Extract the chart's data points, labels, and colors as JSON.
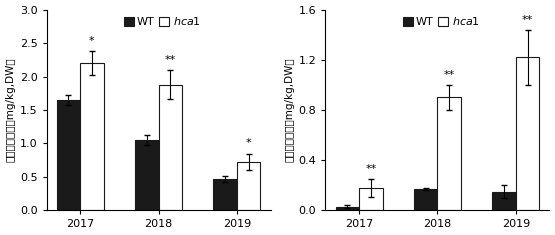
{
  "left_chart": {
    "ylabel": "糙米中镁含量（mg/kg,DW）",
    "ylim": [
      0,
      3.0
    ],
    "yticks": [
      0.0,
      0.5,
      1.0,
      1.5,
      2.0,
      2.5,
      3.0
    ],
    "categories": [
      "2017",
      "2018",
      "2019"
    ],
    "wt_values": [
      1.65,
      1.05,
      0.47
    ],
    "hca1_values": [
      2.2,
      1.88,
      0.73
    ],
    "wt_errors": [
      0.08,
      0.08,
      0.05
    ],
    "hca1_errors": [
      0.18,
      0.22,
      0.12
    ],
    "hca1_sig": [
      "*",
      "**",
      "*"
    ]
  },
  "right_chart": {
    "ylabel": "糙米中硃含量（mg/kg,DW）",
    "ylim": [
      0,
      1.6
    ],
    "yticks": [
      0.0,
      0.4,
      0.8,
      1.2,
      1.6
    ],
    "categories": [
      "2017",
      "2018",
      "2019"
    ],
    "wt_values": [
      0.03,
      0.17,
      0.15
    ],
    "hca1_values": [
      0.18,
      0.9,
      1.22
    ],
    "wt_errors": [
      0.01,
      0.01,
      0.05
    ],
    "hca1_errors": [
      0.07,
      0.1,
      0.22
    ],
    "hca1_sig": [
      "**",
      "**",
      "**"
    ]
  },
  "bar_width": 0.3,
  "wt_color": "#1a1a1a",
  "hca1_color": "#ffffff",
  "edge_color": "#1a1a1a",
  "sig_fontsize": 8,
  "legend_fontsize": 8,
  "tick_fontsize": 8,
  "ylabel_fontsize": 7.5
}
